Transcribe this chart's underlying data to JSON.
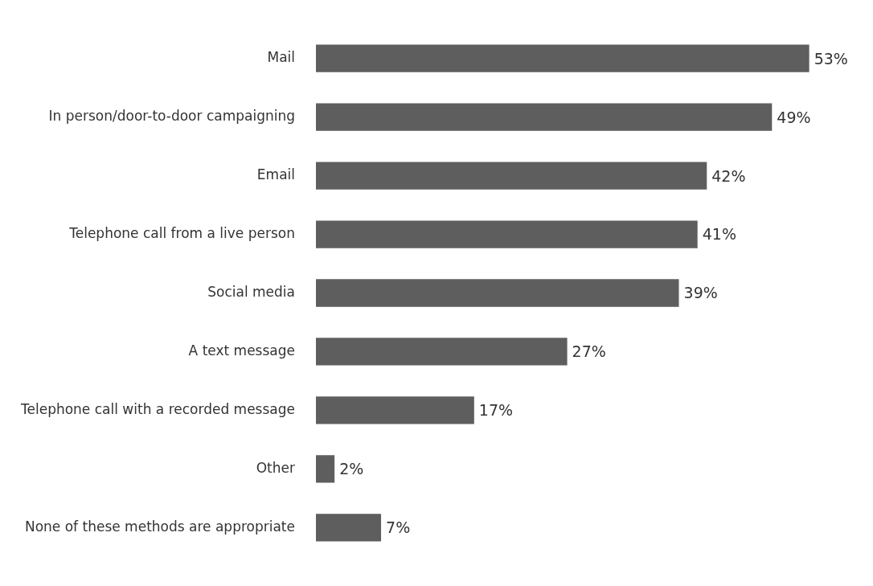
{
  "chart_data": {
    "type": "bar",
    "orientation": "horizontal",
    "categories": [
      "Mail",
      "In person/door-to-door campaigning",
      "Email",
      "Telephone call from a live person",
      "Social media",
      "A text message",
      "Telephone call with a recorded message",
      "Other",
      "None of these methods are appropriate"
    ],
    "values": [
      53,
      49,
      42,
      41,
      39,
      27,
      17,
      2,
      7
    ],
    "value_labels": [
      "53%",
      "49%",
      "42%",
      "41%",
      "39%",
      "27%",
      "17%",
      "2%",
      "7%"
    ],
    "color": "#5e5e5e",
    "tick_labels": "y",
    "legend": false
  }
}
